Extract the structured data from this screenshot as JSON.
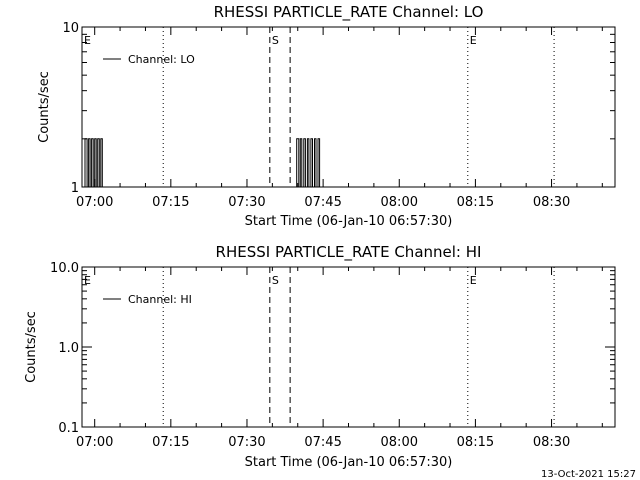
{
  "chart_data": [
    {
      "type": "line",
      "title": "RHESSI PARTICLE_RATE Channel: LO",
      "xlabel": "Start Time (06-Jan-10 06:57:30)",
      "ylabel": "Counts/sec",
      "x_tick_labels": [
        "07:00",
        "07:15",
        "07:30",
        "07:45",
        "08:00",
        "08:15",
        "08:30"
      ],
      "x_tick_minutes": [
        2.5,
        17.5,
        32.5,
        47.5,
        62.5,
        77.5,
        92.5
      ],
      "xlim_minutes": [
        0,
        105
      ],
      "y_scale": "log",
      "ylim": [
        1,
        10
      ],
      "y_tick_labels": [
        "1",
        "10"
      ],
      "legend": {
        "label": "Channel: LO",
        "placement": "top-left"
      },
      "markers": [
        {
          "label": "E",
          "minute": 0,
          "style": "none"
        },
        {
          "label": "",
          "minute": 16,
          "style": "dotted"
        },
        {
          "label": "S",
          "minute": 37,
          "style": "dashed"
        },
        {
          "label": "",
          "minute": 41,
          "style": "dashed"
        },
        {
          "label": "E",
          "minute": 76,
          "style": "dotted"
        },
        {
          "label": "",
          "minute": 93,
          "style": "dotted"
        }
      ],
      "series": [
        {
          "name": "Channel: LO",
          "points": [
            [
              0,
              1
            ],
            [
              0.6,
              1
            ],
            [
              0.6,
              2
            ],
            [
              1.0,
              2
            ],
            [
              1.0,
              1
            ],
            [
              1.3,
              1
            ],
            [
              1.3,
              2
            ],
            [
              1.6,
              2
            ],
            [
              1.6,
              1
            ],
            [
              1.9,
              1
            ],
            [
              1.9,
              2
            ],
            [
              2.2,
              2
            ],
            [
              2.2,
              1
            ],
            [
              2.5,
              1
            ],
            [
              2.5,
              2
            ],
            [
              2.8,
              2
            ],
            [
              2.8,
              1
            ],
            [
              3.1,
              1
            ],
            [
              3.1,
              2
            ],
            [
              3.4,
              2
            ],
            [
              3.4,
              1
            ],
            [
              3.7,
              1
            ],
            [
              3.7,
              2
            ],
            [
              4.0,
              2
            ],
            [
              4.0,
              1
            ],
            [
              5.0,
              1
            ],
            [
              42.0,
              1
            ],
            [
              42.3,
              1
            ],
            [
              42.3,
              2
            ],
            [
              42.7,
              2
            ],
            [
              42.7,
              1
            ],
            [
              43.0,
              1
            ],
            [
              43.0,
              2
            ],
            [
              43.3,
              2
            ],
            [
              43.3,
              1
            ],
            [
              43.7,
              1
            ],
            [
              43.7,
              2
            ],
            [
              44.0,
              2
            ],
            [
              44.0,
              1
            ],
            [
              44.4,
              1
            ],
            [
              44.4,
              2
            ],
            [
              44.7,
              2
            ],
            [
              44.7,
              1
            ],
            [
              45.1,
              1
            ],
            [
              45.1,
              2
            ],
            [
              45.4,
              2
            ],
            [
              45.4,
              1
            ],
            [
              45.8,
              1
            ],
            [
              45.8,
              2
            ],
            [
              46.1,
              2
            ],
            [
              46.1,
              1
            ],
            [
              46.5,
              1
            ],
            [
              46.5,
              2
            ],
            [
              46.8,
              2
            ],
            [
              46.8,
              1
            ],
            [
              47.5,
              1
            ]
          ]
        }
      ]
    },
    {
      "type": "line",
      "title": "RHESSI PARTICLE_RATE Channel: HI",
      "xlabel": "Start Time (06-Jan-10 06:57:30)",
      "ylabel": "Counts/sec",
      "x_tick_labels": [
        "07:00",
        "07:15",
        "07:30",
        "07:45",
        "08:00",
        "08:15",
        "08:30"
      ],
      "x_tick_minutes": [
        2.5,
        17.5,
        32.5,
        47.5,
        62.5,
        77.5,
        92.5
      ],
      "xlim_minutes": [
        0,
        105
      ],
      "y_scale": "log",
      "ylim": [
        0.1,
        10
      ],
      "y_tick_labels": [
        "0.1",
        "1.0",
        "10.0"
      ],
      "legend": {
        "label": "Channel: HI",
        "placement": "top-left"
      },
      "markers": [
        {
          "label": "E",
          "minute": 0,
          "style": "none"
        },
        {
          "label": "",
          "minute": 16,
          "style": "dotted"
        },
        {
          "label": "S",
          "minute": 37,
          "style": "dashed"
        },
        {
          "label": "",
          "minute": 41,
          "style": "dashed"
        },
        {
          "label": "E",
          "minute": 76,
          "style": "dotted"
        },
        {
          "label": "",
          "minute": 93,
          "style": "dotted"
        }
      ],
      "series": [
        {
          "name": "Channel: HI",
          "points": []
        }
      ]
    }
  ],
  "footer": {
    "date_label": "13-Oct-2021 15:27"
  }
}
